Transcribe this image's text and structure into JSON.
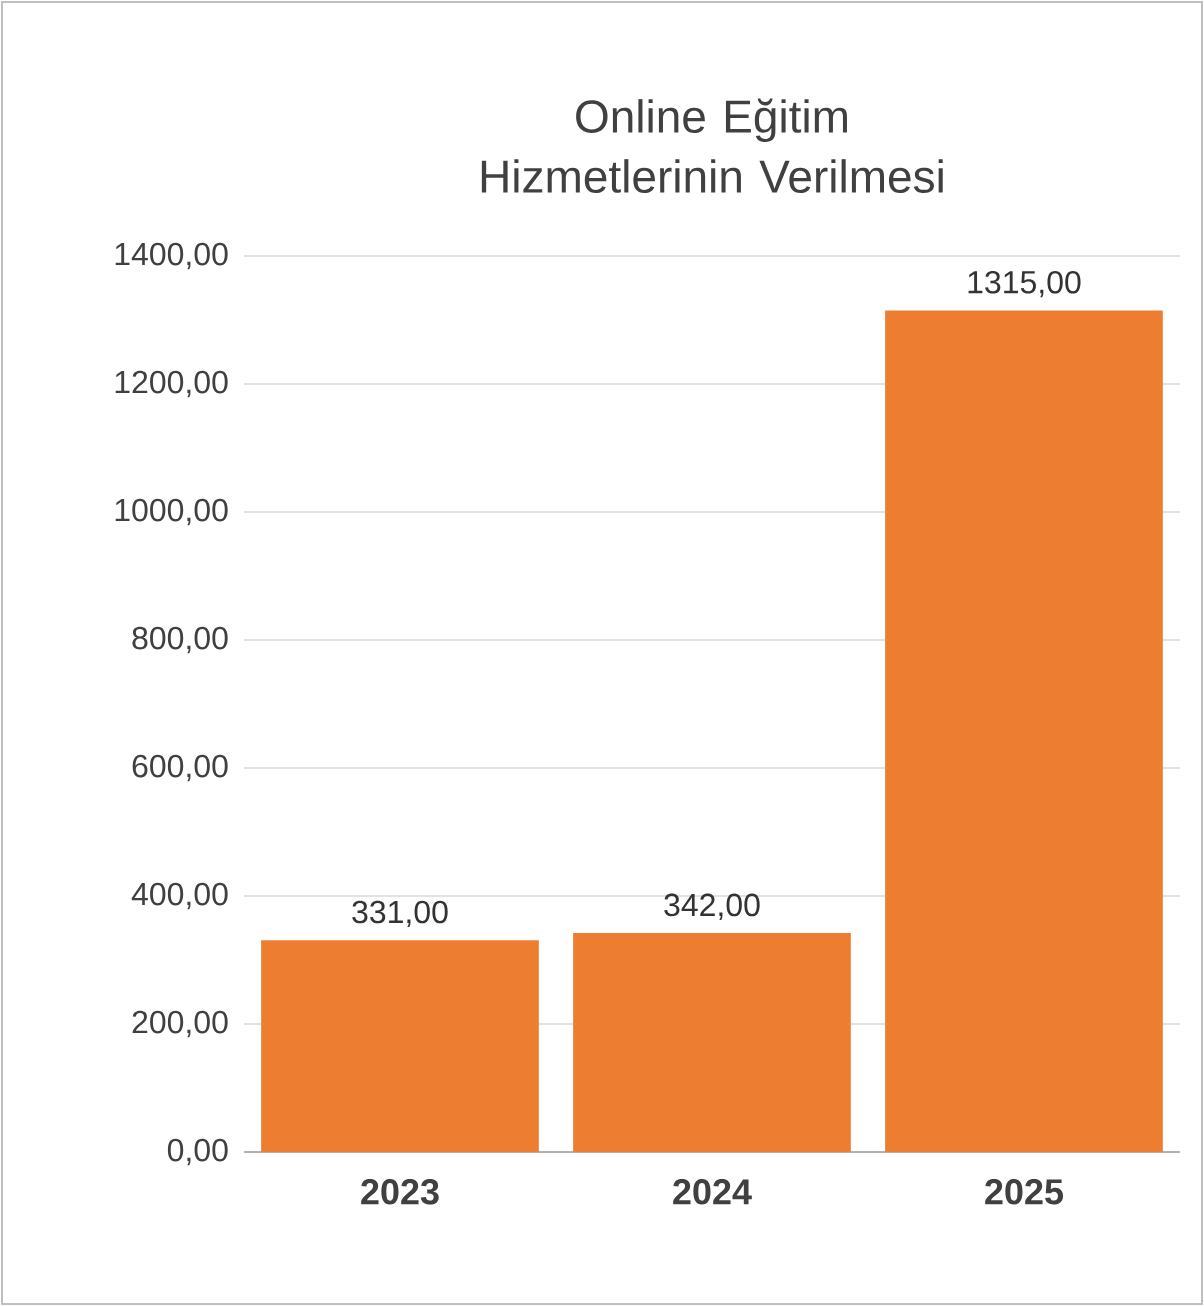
{
  "chart_data": {
    "type": "bar",
    "title": "Online Eğitim Hizmetlerinin Verilmesi",
    "categories": [
      "2023",
      "2024",
      "2025"
    ],
    "values": [
      331,
      342,
      1315
    ],
    "color": "#ed7d31",
    "value_labels": [
      "331,00",
      "342,00",
      "1315,00"
    ],
    "ylim": [
      0,
      1400
    ],
    "yticks": [
      {
        "value": 0,
        "label": "0,00"
      },
      {
        "value": 200,
        "label": "200,00"
      },
      {
        "value": 400,
        "label": "400,00"
      },
      {
        "value": 600,
        "label": "600,00"
      },
      {
        "value": 800,
        "label": "800,00"
      },
      {
        "value": 1000,
        "label": "1000,00"
      },
      {
        "value": 1200,
        "label": "1200,00"
      },
      {
        "value": 1400,
        "label": "1400,00"
      }
    ],
    "grid": "y"
  }
}
